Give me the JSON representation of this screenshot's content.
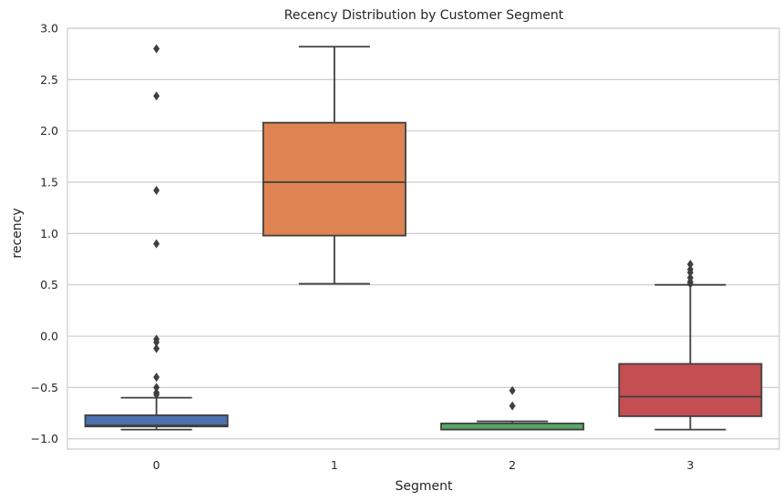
{
  "chart_data": {
    "type": "box",
    "title": "Recency Distribution by Customer Segment",
    "xlabel": "Segment",
    "ylabel": "recency",
    "ylim": [
      -1.1,
      3.0
    ],
    "yticks": [
      -1.0,
      -0.5,
      0.0,
      0.5,
      1.0,
      1.5,
      2.0,
      2.5,
      3.0
    ],
    "ytick_labels": [
      "−1.0",
      "−0.5",
      "0.0",
      "0.5",
      "1.0",
      "1.5",
      "2.0",
      "2.5",
      "3.0"
    ],
    "grid": "horizontal",
    "categories": [
      "0",
      "1",
      "2",
      "3"
    ],
    "boxes": [
      {
        "category": "0",
        "whisker_low": -0.91,
        "q1": -0.88,
        "median": -0.87,
        "q3": -0.77,
        "whisker_high": -0.6,
        "outliers": [
          2.8,
          2.34,
          1.42,
          0.9,
          -0.03,
          -0.06,
          -0.12,
          -0.4,
          -0.5,
          -0.55,
          -0.57
        ],
        "color": "#4C72B0"
      },
      {
        "category": "1",
        "whisker_low": 0.51,
        "q1": 0.98,
        "median": 1.5,
        "q3": 2.08,
        "whisker_high": 2.82,
        "outliers": [],
        "color": "#DD8452"
      },
      {
        "category": "2",
        "whisker_low": -0.91,
        "q1": -0.91,
        "median": -0.91,
        "q3": -0.85,
        "whisker_high": -0.83,
        "outliers": [
          -0.53,
          -0.68
        ],
        "color": "#55A868"
      },
      {
        "category": "3",
        "whisker_low": -0.91,
        "q1": -0.78,
        "median": -0.59,
        "q3": -0.27,
        "whisker_high": 0.5,
        "outliers": [
          0.51,
          0.53,
          0.57,
          0.62,
          0.65,
          0.7
        ],
        "color": "#C44E52"
      }
    ]
  }
}
